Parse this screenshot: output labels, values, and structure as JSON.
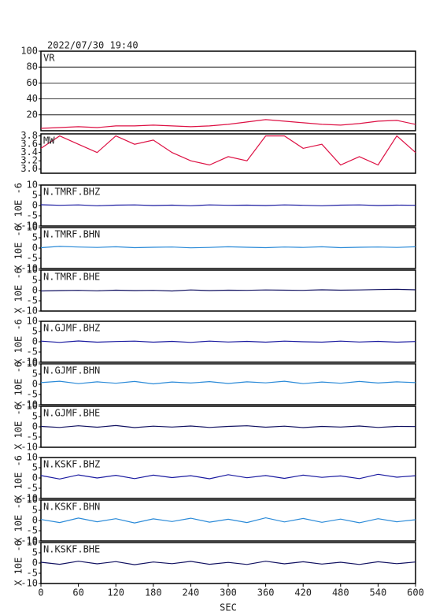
{
  "chart_data": [
    {
      "type": "line",
      "title": "2022/07/30 19:40",
      "label": "VR",
      "color": "#dd1144",
      "grid": true,
      "xlim": [
        0,
        600
      ],
      "x": [
        0,
        30,
        60,
        90,
        120,
        150,
        180,
        210,
        240,
        270,
        300,
        330,
        360,
        390,
        420,
        450,
        480,
        510,
        540,
        570,
        600
      ],
      "values": [
        3,
        4,
        5,
        4,
        6,
        6,
        7,
        6,
        5,
        6,
        8,
        11,
        14,
        12,
        10,
        8,
        7,
        9,
        12,
        13,
        8
      ],
      "ylim": [
        0,
        100
      ],
      "yticks": [
        20,
        40,
        60,
        80,
        100
      ]
    },
    {
      "type": "line",
      "label": "MW",
      "color": "#dd1144",
      "grid": false,
      "xlim": [
        0,
        600
      ],
      "x": [
        0,
        30,
        60,
        90,
        120,
        150,
        180,
        210,
        240,
        270,
        300,
        330,
        360,
        390,
        420,
        450,
        480,
        510,
        540,
        570,
        600
      ],
      "values": [
        3.5,
        3.8,
        3.6,
        3.4,
        3.8,
        3.6,
        3.7,
        3.4,
        3.2,
        3.1,
        3.3,
        3.2,
        3.8,
        3.8,
        3.5,
        3.6,
        3.1,
        3.3,
        3.1,
        3.8,
        3.4
      ],
      "ylim": [
        2.9,
        3.85
      ],
      "yticks": [
        {
          "value": 3,
          "label": "3.0"
        },
        3.2,
        3.4,
        3.6,
        3.8
      ]
    },
    {
      "type": "line",
      "label": "N.TMRF.BHZ",
      "ylabel": "X 10E -6",
      "color": "#1a1aa0",
      "xlim": [
        0,
        600
      ],
      "x": [
        0,
        30,
        60,
        90,
        120,
        150,
        180,
        210,
        240,
        270,
        300,
        330,
        360,
        390,
        420,
        450,
        480,
        510,
        540,
        570,
        600
      ],
      "values": [
        0.4,
        0.1,
        0.3,
        -0.1,
        0.2,
        0.3,
        0,
        0.2,
        -0.1,
        0.3,
        0.1,
        0.2,
        0,
        0.3,
        0.1,
        -0.1,
        0.2,
        0.3,
        0,
        0.2,
        0.1
      ],
      "ylim": [
        -10,
        10
      ],
      "yticks": [
        -10,
        -5,
        0,
        5,
        10
      ]
    },
    {
      "type": "line",
      "label": "N.TMRF.BHN",
      "ylabel": "X 10E -6",
      "color": "#2a8ad8",
      "xlim": [
        0,
        600
      ],
      "x": [
        0,
        30,
        60,
        90,
        120,
        150,
        180,
        210,
        240,
        270,
        300,
        330,
        360,
        390,
        420,
        450,
        480,
        510,
        540,
        570,
        600
      ],
      "values": [
        0.2,
        0.8,
        0.5,
        0.3,
        0.6,
        0.2,
        0.4,
        0.5,
        0.1,
        0.3,
        0.6,
        0.4,
        0.2,
        0.5,
        0.3,
        0.6,
        0.2,
        0.4,
        0.5,
        0.3,
        0.6
      ],
      "ylim": [
        -10,
        10
      ],
      "yticks": [
        -10,
        -5,
        0,
        5,
        10
      ]
    },
    {
      "type": "line",
      "label": "N.TMRF.BHE",
      "ylabel": "X 10E -6",
      "color": "#101060",
      "xlim": [
        0,
        600
      ],
      "x": [
        0,
        30,
        60,
        90,
        120,
        150,
        180,
        210,
        240,
        270,
        300,
        330,
        360,
        390,
        420,
        450,
        480,
        510,
        540,
        570,
        600
      ],
      "values": [
        -0.2,
        0,
        0.1,
        -0.1,
        0.2,
        0,
        0.1,
        -0.2,
        0.3,
        0,
        0.2,
        0.1,
        0.3,
        0.2,
        0.1,
        0.4,
        0.2,
        0.3,
        0.5,
        0.6,
        0.4
      ],
      "ylim": [
        -10,
        10
      ],
      "yticks": [
        -10,
        -5,
        0,
        5,
        10
      ]
    },
    {
      "type": "line",
      "label": "N.GJMF.BHZ",
      "ylabel": "X 10E -6",
      "color": "#1a1aa0",
      "xlim": [
        0,
        600
      ],
      "x": [
        0,
        30,
        60,
        90,
        120,
        150,
        180,
        210,
        240,
        270,
        300,
        330,
        360,
        390,
        420,
        450,
        480,
        510,
        540,
        570,
        600
      ],
      "values": [
        0.3,
        -0.3,
        0.4,
        -0.2,
        0.1,
        0.3,
        -0.2,
        0.2,
        -0.3,
        0.3,
        -0.1,
        0.2,
        -0.2,
        0.3,
        0,
        -0.2,
        0.3,
        -0.1,
        0.2,
        -0.2,
        0.1
      ],
      "ylim": [
        -10,
        10
      ],
      "yticks": [
        -10,
        -5,
        0,
        5,
        10
      ]
    },
    {
      "type": "line",
      "label": "N.GJMF.BHN",
      "ylabel": "X 10E -6",
      "color": "#2a8ad8",
      "xlim": [
        0,
        600
      ],
      "x": [
        0,
        30,
        60,
        90,
        120,
        150,
        180,
        210,
        240,
        270,
        300,
        330,
        360,
        390,
        420,
        450,
        480,
        510,
        540,
        570,
        600
      ],
      "values": [
        0.8,
        1.5,
        0.3,
        1.2,
        0.5,
        1.4,
        0.2,
        1.1,
        0.6,
        1.3,
        0.4,
        1.2,
        0.7,
        1.5,
        0.3,
        1.1,
        0.5,
        1.4,
        0.6,
        1.2,
        0.8
      ],
      "ylim": [
        -10,
        10
      ],
      "yticks": [
        -10,
        -5,
        0,
        5,
        10
      ]
    },
    {
      "type": "line",
      "label": "N.GJMF.BHE",
      "ylabel": "X 10E -6",
      "color": "#101060",
      "xlim": [
        0,
        600
      ],
      "x": [
        0,
        30,
        60,
        90,
        120,
        150,
        180,
        210,
        240,
        270,
        300,
        330,
        360,
        390,
        420,
        450,
        480,
        510,
        540,
        570,
        600
      ],
      "values": [
        0.2,
        -0.3,
        0.5,
        -0.2,
        0.6,
        -0.4,
        0.3,
        -0.1,
        0.4,
        -0.3,
        0.2,
        0.5,
        -0.2,
        0.3,
        -0.4,
        0.2,
        -0.1,
        0.4,
        -0.3,
        0.2,
        0.1
      ],
      "ylim": [
        -10,
        10
      ],
      "yticks": [
        -10,
        -5,
        0,
        5,
        10
      ]
    },
    {
      "type": "line",
      "label": "N.KSKF.BHZ",
      "ylabel": "X 10E -6",
      "color": "#1a1aa0",
      "xlim": [
        0,
        600
      ],
      "x": [
        0,
        30,
        60,
        90,
        120,
        150,
        180,
        210,
        240,
        270,
        300,
        330,
        360,
        390,
        420,
        450,
        480,
        510,
        540,
        570,
        600
      ],
      "values": [
        1.2,
        -0.5,
        1.5,
        0,
        1.3,
        -0.3,
        1.4,
        0.2,
        1.1,
        -0.4,
        1.6,
        0.1,
        1.2,
        -0.2,
        1.4,
        0.3,
        1.0,
        -0.3,
        1.8,
        0.4,
        1.1
      ],
      "ylim": [
        -10,
        10
      ],
      "yticks": [
        -10,
        -5,
        0,
        5,
        10
      ]
    },
    {
      "type": "line",
      "label": "N.KSKF.BHN",
      "ylabel": "X 10E -6",
      "color": "#2a8ad8",
      "xlim": [
        0,
        600
      ],
      "x": [
        0,
        30,
        60,
        90,
        120,
        150,
        180,
        210,
        240,
        270,
        300,
        330,
        360,
        390,
        420,
        450,
        480,
        510,
        540,
        570,
        600
      ],
      "values": [
        0.5,
        -1.0,
        1.2,
        -0.6,
        0.9,
        -1.2,
        0.8,
        -0.5,
        1.1,
        -0.8,
        0.6,
        -1.0,
        1.3,
        -0.7,
        1.0,
        -0.9,
        0.7,
        -1.1,
        0.9,
        -0.6,
        0.4
      ],
      "ylim": [
        -10,
        10
      ],
      "yticks": [
        -10,
        -5,
        0,
        5,
        10
      ]
    },
    {
      "type": "line",
      "label": "N.KSKF.BHE",
      "ylabel": "X 10E -6",
      "color": "#101060",
      "xlim": [
        0,
        600
      ],
      "x": [
        0,
        30,
        60,
        90,
        120,
        150,
        180,
        210,
        240,
        270,
        300,
        330,
        360,
        390,
        420,
        450,
        480,
        510,
        540,
        570,
        600
      ],
      "values": [
        0.4,
        -0.6,
        0.9,
        -0.4,
        0.7,
        -0.8,
        0.5,
        -0.3,
        0.8,
        -0.6,
        0.3,
        -0.7,
        0.9,
        -0.4,
        0.6,
        -0.5,
        0.4,
        -0.7,
        0.6,
        -0.3,
        0.5
      ],
      "ylim": [
        -10,
        10
      ],
      "yticks": [
        -10,
        -5,
        0,
        5,
        10
      ],
      "xticks": [
        0,
        60,
        120,
        180,
        240,
        300,
        360,
        420,
        480,
        540,
        600
      ],
      "xlabel": "SEC"
    }
  ]
}
